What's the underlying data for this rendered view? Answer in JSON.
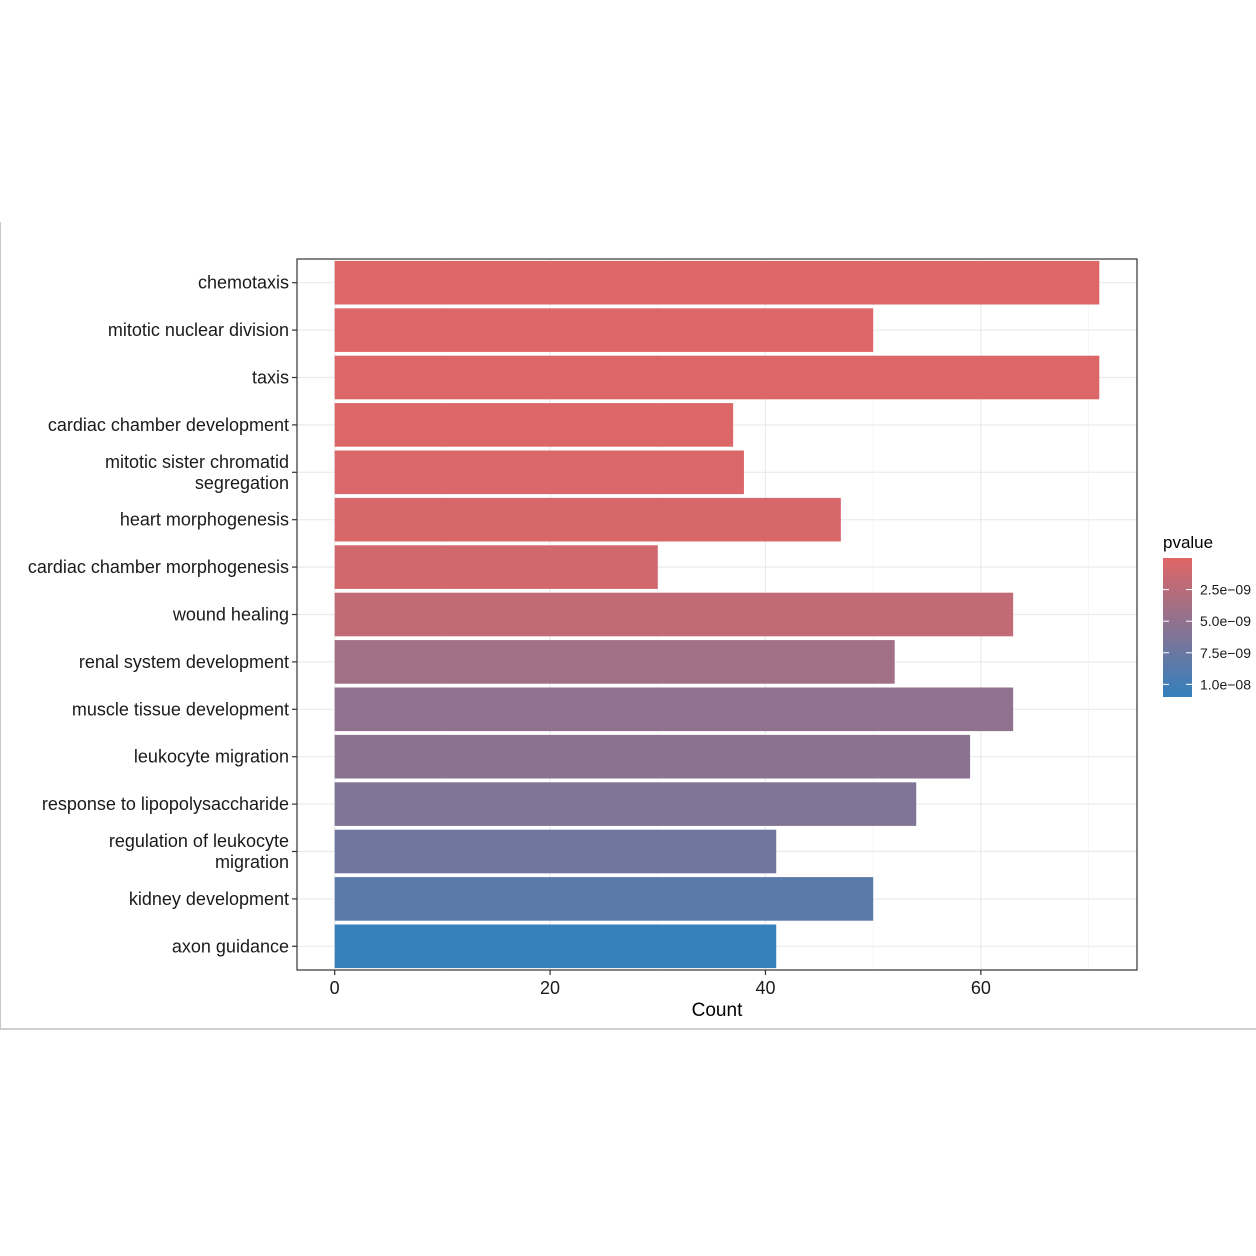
{
  "chart_data": {
    "type": "bar",
    "orientation": "horizontal",
    "categories": [
      "chemotaxis",
      "mitotic nuclear division",
      "taxis",
      "cardiac chamber development",
      "mitotic sister chromatid segregation",
      "heart morphogenesis",
      "cardiac chamber morphogenesis",
      "wound healing",
      "renal system development",
      "muscle tissue development",
      "leukocyte migration",
      "response to lipopolysaccharide",
      "regulation of leukocyte migration",
      "kidney development",
      "axon guidance"
    ],
    "category_label_lines": [
      [
        "chemotaxis"
      ],
      [
        "mitotic nuclear division"
      ],
      [
        "taxis"
      ],
      [
        "cardiac chamber development"
      ],
      [
        "mitotic sister chromatid",
        "segregation"
      ],
      [
        "heart morphogenesis"
      ],
      [
        "cardiac chamber morphogenesis"
      ],
      [
        "wound healing"
      ],
      [
        "renal system development"
      ],
      [
        "muscle tissue development"
      ],
      [
        "leukocyte migration"
      ],
      [
        "response to lipopolysaccharide"
      ],
      [
        "regulation of leukocyte",
        "migration"
      ],
      [
        "kidney development"
      ],
      [
        "axon guidance"
      ]
    ],
    "values": [
      71,
      50,
      71,
      37,
      38,
      47,
      30,
      63,
      52,
      63,
      59,
      54,
      41,
      50,
      41
    ],
    "pvalues": [
      1e-10,
      2e-10,
      3e-10,
      3e-10,
      4e-10,
      5e-10,
      1e-09,
      2e-09,
      4e-09,
      5e-09,
      5.5e-09,
      6e-09,
      7.2e-09,
      8.5e-09,
      1.08e-08
    ],
    "xlabel": "Count",
    "ylabel": "",
    "xlim": [
      -3.5,
      74.5
    ],
    "x_ticks": [
      0,
      20,
      40,
      60
    ],
    "x_tick_labels": [
      "0",
      "20",
      "40",
      "60"
    ],
    "legend": {
      "title": "pvalue",
      "placement": "right",
      "range": [
        0,
        1.1e-08
      ],
      "low_color": "#e06666",
      "high_color": "#3380bd",
      "ticks": [
        2.5e-09,
        5e-09,
        7.5e-09,
        1e-08
      ],
      "tick_labels": [
        "2.5e−09",
        "5.0e−09",
        "7.5e−09",
        "1.0e−08"
      ]
    },
    "grid": true
  }
}
